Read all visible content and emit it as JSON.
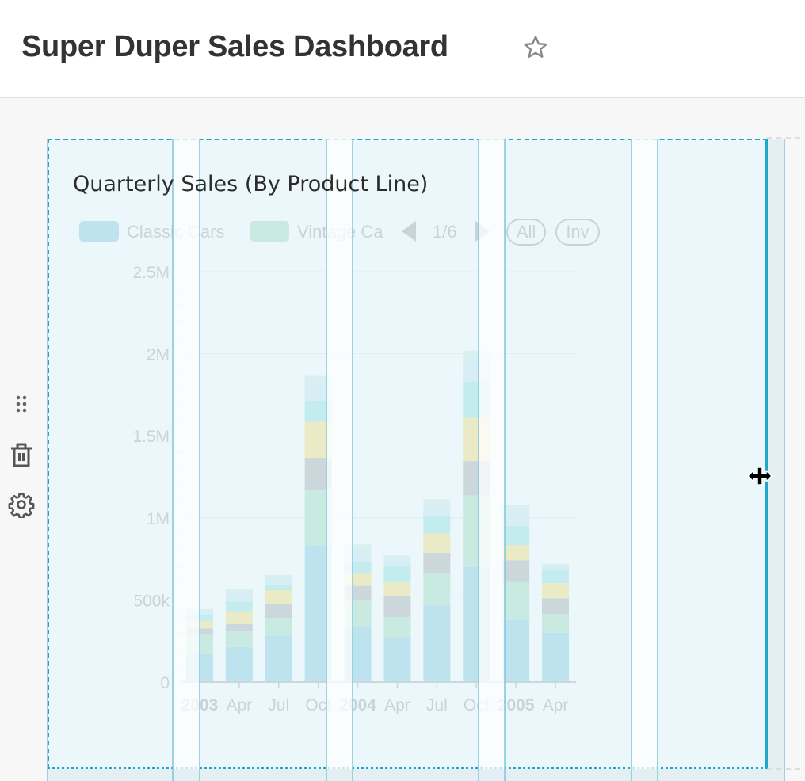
{
  "header": {
    "title": "Super Duper Sales Dashboard",
    "favorite_icon": "star-outline-icon"
  },
  "side_tools": {
    "drag_icon": "drag-handle-icon",
    "delete_icon": "trash-icon",
    "settings_icon": "gear-icon"
  },
  "colors": {
    "accent": "#20A7C9",
    "series": [
      "#1FA8C9",
      "#5AC189",
      "#666666",
      "#FCC700",
      "#3CCCCB",
      "#A1D9EC",
      "#B2E4C5"
    ]
  },
  "chart": {
    "title": "Quarterly Sales (By Product Line)",
    "legend": {
      "items": [
        "Classic Cars",
        "Vintage Ca"
      ],
      "page": "1/6",
      "all_label": "All",
      "inv_label": "Inv"
    }
  },
  "chart_data": {
    "type": "bar",
    "stacked": true,
    "categories": [
      "2003",
      "Apr",
      "Jul",
      "Oct",
      "2004",
      "Apr",
      "Jul",
      "Oct",
      "2005",
      "Apr"
    ],
    "bold_categories": [
      "2003",
      "2004",
      "2005"
    ],
    "y_ticks": [
      "0",
      "500k",
      "1M",
      "1.5M",
      "2M",
      "2.5M"
    ],
    "ylim": [
      0,
      2500000
    ],
    "grid": true,
    "legend_position": "top-left",
    "series": [
      {
        "name": "Classic Cars",
        "values": [
          169000,
          213000,
          283000,
          833000,
          337000,
          266000,
          467000,
          700000,
          380000,
          300000
        ]
      },
      {
        "name": "Vintage Cars",
        "values": [
          119000,
          95000,
          107000,
          334000,
          159000,
          130000,
          195000,
          437000,
          229000,
          114000
        ]
      },
      {
        "values": [
          39000,
          45000,
          83000,
          199000,
          90000,
          131000,
          125000,
          209000,
          133000,
          96000
        ]
      },
      {
        "values": [
          45000,
          74000,
          87000,
          219000,
          74000,
          80000,
          118000,
          264000,
          92000,
          92000
        ]
      },
      {
        "values": [
          39000,
          64000,
          33000,
          128000,
          73000,
          97000,
          108000,
          221000,
          118000,
          78000
        ]
      },
      {
        "values": [
          29000,
          58000,
          45000,
          120000,
          80000,
          48000,
          72000,
          132000,
          95000,
          37000
        ]
      },
      {
        "values": [
          6000,
          18000,
          14000,
          32000,
          26000,
          18000,
          29000,
          56000,
          29000,
          4000
        ]
      }
    ]
  }
}
